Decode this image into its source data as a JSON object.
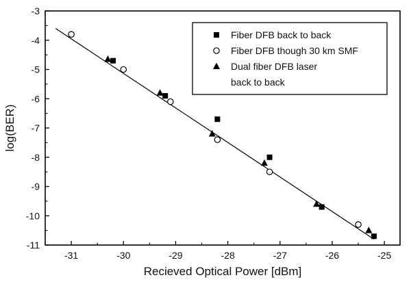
{
  "chart_data": {
    "type": "scatter",
    "title": "",
    "xlabel": "Recieved Optical Power [dBm]",
    "ylabel": "log(BER)",
    "xlim": [
      -31.5,
      -24.7
    ],
    "ylim": [
      -11,
      -3
    ],
    "xticks": [
      -31,
      -30,
      -29,
      -28,
      -27,
      -26,
      -25
    ],
    "yticks": [
      -3,
      -4,
      -5,
      -6,
      -7,
      -8,
      -9,
      -10,
      -11
    ],
    "grid": false,
    "legend_position": "top-right",
    "series": [
      {
        "name": "Fiber DFB back to back",
        "marker": "filled-square",
        "x": [
          -30.2,
          -29.2,
          -28.2,
          -27.2,
          -26.2,
          -25.2
        ],
        "y": [
          -4.7,
          -5.9,
          -6.7,
          -8.0,
          -9.7,
          -10.7
        ]
      },
      {
        "name": "Fiber DFB though 30 km SMF",
        "marker": "open-circle",
        "x": [
          -31.0,
          -30.0,
          -29.1,
          -28.2,
          -27.2,
          -25.5
        ],
        "y": [
          -3.8,
          -5.0,
          -6.1,
          -7.4,
          -8.5,
          -10.3
        ]
      },
      {
        "name": "Dual fiber DFB laser back to back",
        "legend_lines": [
          "Dual fiber DFB laser",
          "back to back"
        ],
        "marker": "filled-triangle",
        "x": [
          -30.3,
          -29.3,
          -28.3,
          -27.3,
          -26.3,
          -25.3
        ],
        "y": [
          -4.65,
          -5.8,
          -7.2,
          -8.2,
          -9.6,
          -10.5
        ]
      }
    ],
    "fit_line": {
      "x": [
        -31.3,
        -25.2
      ],
      "y": [
        -3.6,
        -10.8
      ]
    }
  }
}
